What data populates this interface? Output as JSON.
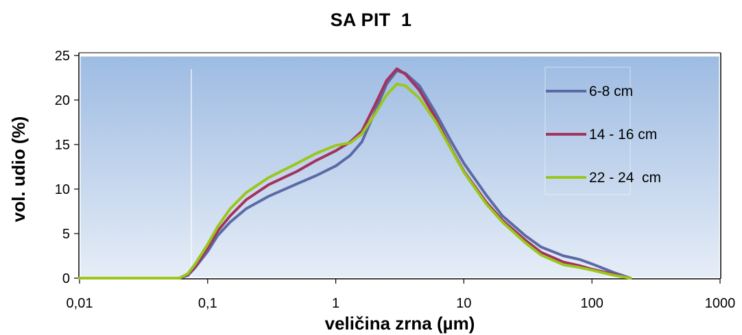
{
  "chart_data": {
    "type": "line",
    "title": "SA PIT  1",
    "xlabel": "veličina zrna (µm)",
    "ylabel": "vol. udio (%)",
    "x_scale": "log",
    "xlim": [
      0.01,
      1000
    ],
    "ylim": [
      0,
      25
    ],
    "x_ticks": [
      "0,01",
      "0,1",
      "1",
      "10",
      "100",
      "1000"
    ],
    "y_ticks": [
      "0",
      "5",
      "10",
      "15",
      "20",
      "25"
    ],
    "legend_position": "right",
    "colors": {
      "plot_bg_top": "#9dbbe2",
      "plot_bg_bottom": "#e6edf7"
    },
    "series": [
      {
        "name": "6-8 cm",
        "color": "#5b6aa6",
        "points": [
          [
            0.01,
            0
          ],
          [
            0.06,
            0
          ],
          [
            0.07,
            0.3
          ],
          [
            0.08,
            1.2
          ],
          [
            0.1,
            3
          ],
          [
            0.12,
            4.8
          ],
          [
            0.15,
            6.3
          ],
          [
            0.2,
            7.8
          ],
          [
            0.3,
            9.2
          ],
          [
            0.5,
            10.6
          ],
          [
            0.7,
            11.5
          ],
          [
            1,
            12.6
          ],
          [
            1.3,
            13.8
          ],
          [
            1.6,
            15.3
          ],
          [
            2,
            18.5
          ],
          [
            2.5,
            21.8
          ],
          [
            3,
            23.3
          ],
          [
            3.5,
            23.0
          ],
          [
            4.5,
            21.6
          ],
          [
            6,
            18.6
          ],
          [
            8,
            15.3
          ],
          [
            10,
            12.9
          ],
          [
            15,
            9.3
          ],
          [
            20,
            7.0
          ],
          [
            30,
            4.8
          ],
          [
            40,
            3.5
          ],
          [
            60,
            2.5
          ],
          [
            80,
            2.1
          ],
          [
            100,
            1.6
          ],
          [
            150,
            0.6
          ],
          [
            200,
            0
          ]
        ]
      },
      {
        "name": "14 - 16 cm",
        "color": "#a3325f",
        "points": [
          [
            0.01,
            0
          ],
          [
            0.06,
            0
          ],
          [
            0.07,
            0.4
          ],
          [
            0.08,
            1.3
          ],
          [
            0.1,
            3.4
          ],
          [
            0.12,
            5.3
          ],
          [
            0.15,
            7.0
          ],
          [
            0.2,
            8.8
          ],
          [
            0.3,
            10.5
          ],
          [
            0.5,
            12.0
          ],
          [
            0.7,
            13.2
          ],
          [
            1,
            14.3
          ],
          [
            1.3,
            15.3
          ],
          [
            1.6,
            16.5
          ],
          [
            2,
            19.3
          ],
          [
            2.5,
            22.2
          ],
          [
            3,
            23.5
          ],
          [
            3.5,
            22.9
          ],
          [
            4.5,
            21.1
          ],
          [
            6,
            18.0
          ],
          [
            8,
            14.5
          ],
          [
            10,
            12.0
          ],
          [
            15,
            8.5
          ],
          [
            20,
            6.5
          ],
          [
            30,
            4.3
          ],
          [
            40,
            2.9
          ],
          [
            60,
            1.8
          ],
          [
            80,
            1.4
          ],
          [
            100,
            1.0
          ],
          [
            150,
            0.4
          ],
          [
            200,
            0
          ]
        ]
      },
      {
        "name": "22 - 24  cm",
        "color": "#9ac71c",
        "points": [
          [
            0.01,
            0
          ],
          [
            0.06,
            0
          ],
          [
            0.07,
            0.5
          ],
          [
            0.08,
            1.6
          ],
          [
            0.1,
            3.8
          ],
          [
            0.12,
            5.8
          ],
          [
            0.15,
            7.8
          ],
          [
            0.2,
            9.6
          ],
          [
            0.3,
            11.3
          ],
          [
            0.5,
            12.9
          ],
          [
            0.7,
            14.0
          ],
          [
            1,
            14.9
          ],
          [
            1.3,
            15.2
          ],
          [
            1.6,
            16.2
          ],
          [
            2,
            18.3
          ],
          [
            2.5,
            20.6
          ],
          [
            3,
            21.8
          ],
          [
            3.5,
            21.6
          ],
          [
            4.5,
            20.2
          ],
          [
            6,
            17.6
          ],
          [
            8,
            14.4
          ],
          [
            10,
            11.9
          ],
          [
            15,
            8.3
          ],
          [
            20,
            6.3
          ],
          [
            30,
            4.0
          ],
          [
            40,
            2.6
          ],
          [
            60,
            1.5
          ],
          [
            80,
            1.2
          ],
          [
            100,
            0.9
          ],
          [
            150,
            0.3
          ],
          [
            200,
            0
          ]
        ]
      }
    ]
  }
}
